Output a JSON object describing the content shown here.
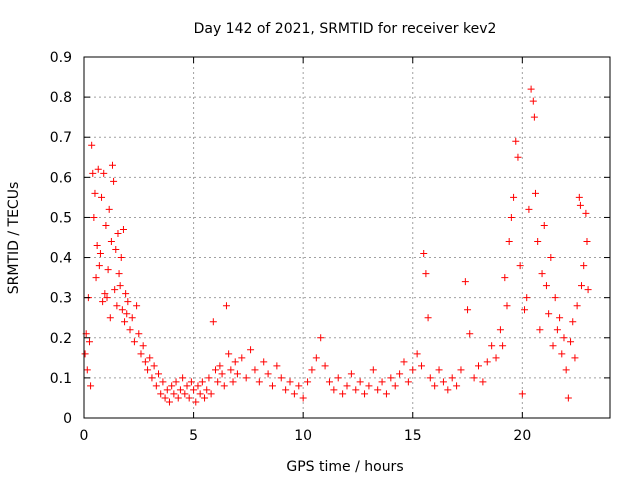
{
  "chart_data": {
    "type": "scatter",
    "title": "Day 142 of 2021, SRMTID for receiver kev2",
    "xlabel": "GPS time / hours",
    "ylabel": "SRMTID / TECUs",
    "xlim": [
      0,
      24
    ],
    "ylim": [
      0,
      0.9
    ],
    "x_ticks": [
      0,
      5,
      10,
      15,
      20
    ],
    "y_ticks": [
      0,
      0.1,
      0.2,
      0.3,
      0.4,
      0.5,
      0.6,
      0.7,
      0.8,
      0.9
    ],
    "x_tick_labels": [
      "0",
      "5",
      "10",
      "15",
      "20"
    ],
    "y_tick_labels": [
      "0",
      "0.1",
      "0.2",
      "0.3",
      "0.4",
      "0.5",
      "0.6",
      "0.7",
      "0.8",
      "0.9"
    ],
    "grid": true,
    "marker": "+",
    "series": [
      {
        "name": "SRMTID",
        "color": "#ff0000",
        "points": [
          [
            0.05,
            0.16
          ],
          [
            0.1,
            0.21
          ],
          [
            0.15,
            0.12
          ],
          [
            0.2,
            0.3
          ],
          [
            0.25,
            0.19
          ],
          [
            0.3,
            0.08
          ],
          [
            0.35,
            0.68
          ],
          [
            0.4,
            0.61
          ],
          [
            0.45,
            0.5
          ],
          [
            0.5,
            0.56
          ],
          [
            0.55,
            0.35
          ],
          [
            0.6,
            0.43
          ],
          [
            0.65,
            0.62
          ],
          [
            0.7,
            0.38
          ],
          [
            0.75,
            0.41
          ],
          [
            0.8,
            0.55
          ],
          [
            0.85,
            0.29
          ],
          [
            0.9,
            0.61
          ],
          [
            0.95,
            0.31
          ],
          [
            1.0,
            0.48
          ],
          [
            1.05,
            0.3
          ],
          [
            1.1,
            0.37
          ],
          [
            1.15,
            0.52
          ],
          [
            1.2,
            0.25
          ],
          [
            1.25,
            0.44
          ],
          [
            1.3,
            0.63
          ],
          [
            1.35,
            0.59
          ],
          [
            1.4,
            0.32
          ],
          [
            1.45,
            0.42
          ],
          [
            1.5,
            0.28
          ],
          [
            1.55,
            0.46
          ],
          [
            1.6,
            0.36
          ],
          [
            1.65,
            0.33
          ],
          [
            1.7,
            0.4
          ],
          [
            1.75,
            0.27
          ],
          [
            1.8,
            0.47
          ],
          [
            1.85,
            0.24
          ],
          [
            1.9,
            0.31
          ],
          [
            1.95,
            0.26
          ],
          [
            2.0,
            0.29
          ],
          [
            2.1,
            0.22
          ],
          [
            2.2,
            0.25
          ],
          [
            2.3,
            0.19
          ],
          [
            2.4,
            0.28
          ],
          [
            2.5,
            0.21
          ],
          [
            2.6,
            0.16
          ],
          [
            2.7,
            0.18
          ],
          [
            2.8,
            0.14
          ],
          [
            2.9,
            0.12
          ],
          [
            3.0,
            0.15
          ],
          [
            3.1,
            0.1
          ],
          [
            3.2,
            0.13
          ],
          [
            3.3,
            0.08
          ],
          [
            3.4,
            0.11
          ],
          [
            3.5,
            0.06
          ],
          [
            3.6,
            0.09
          ],
          [
            3.7,
            0.05
          ],
          [
            3.8,
            0.07
          ],
          [
            3.9,
            0.04
          ],
          [
            4.0,
            0.08
          ],
          [
            4.1,
            0.06
          ],
          [
            4.2,
            0.09
          ],
          [
            4.3,
            0.05
          ],
          [
            4.4,
            0.07
          ],
          [
            4.5,
            0.1
          ],
          [
            4.6,
            0.06
          ],
          [
            4.7,
            0.08
          ],
          [
            4.8,
            0.05
          ],
          [
            4.9,
            0.09
          ],
          [
            5.0,
            0.07
          ],
          [
            5.1,
            0.04
          ],
          [
            5.2,
            0.08
          ],
          [
            5.3,
            0.06
          ],
          [
            5.4,
            0.09
          ],
          [
            5.5,
            0.05
          ],
          [
            5.6,
            0.07
          ],
          [
            5.7,
            0.1
          ],
          [
            5.8,
            0.06
          ],
          [
            5.9,
            0.24
          ],
          [
            6.0,
            0.12
          ],
          [
            6.1,
            0.09
          ],
          [
            6.2,
            0.13
          ],
          [
            6.3,
            0.11
          ],
          [
            6.4,
            0.08
          ],
          [
            6.5,
            0.28
          ],
          [
            6.6,
            0.16
          ],
          [
            6.7,
            0.12
          ],
          [
            6.8,
            0.09
          ],
          [
            6.9,
            0.14
          ],
          [
            7.0,
            0.11
          ],
          [
            7.2,
            0.15
          ],
          [
            7.4,
            0.1
          ],
          [
            7.6,
            0.17
          ],
          [
            7.8,
            0.12
          ],
          [
            8.0,
            0.09
          ],
          [
            8.2,
            0.14
          ],
          [
            8.4,
            0.11
          ],
          [
            8.6,
            0.08
          ],
          [
            8.8,
            0.13
          ],
          [
            9.0,
            0.1
          ],
          [
            9.2,
            0.07
          ],
          [
            9.4,
            0.09
          ],
          [
            9.6,
            0.06
          ],
          [
            9.8,
            0.08
          ],
          [
            10.0,
            0.05
          ],
          [
            10.2,
            0.09
          ],
          [
            10.4,
            0.12
          ],
          [
            10.6,
            0.15
          ],
          [
            10.8,
            0.2
          ],
          [
            11.0,
            0.13
          ],
          [
            11.2,
            0.09
          ],
          [
            11.4,
            0.07
          ],
          [
            11.6,
            0.1
          ],
          [
            11.8,
            0.06
          ],
          [
            12.0,
            0.08
          ],
          [
            12.2,
            0.11
          ],
          [
            12.4,
            0.07
          ],
          [
            12.6,
            0.09
          ],
          [
            12.8,
            0.06
          ],
          [
            13.0,
            0.08
          ],
          [
            13.2,
            0.12
          ],
          [
            13.4,
            0.07
          ],
          [
            13.6,
            0.09
          ],
          [
            13.8,
            0.06
          ],
          [
            14.0,
            0.1
          ],
          [
            14.2,
            0.08
          ],
          [
            14.4,
            0.11
          ],
          [
            14.6,
            0.14
          ],
          [
            14.8,
            0.09
          ],
          [
            15.0,
            0.12
          ],
          [
            15.2,
            0.16
          ],
          [
            15.4,
            0.13
          ],
          [
            15.5,
            0.41
          ],
          [
            15.6,
            0.36
          ],
          [
            15.7,
            0.25
          ],
          [
            15.8,
            0.1
          ],
          [
            16.0,
            0.08
          ],
          [
            16.2,
            0.12
          ],
          [
            16.4,
            0.09
          ],
          [
            16.6,
            0.07
          ],
          [
            16.8,
            0.1
          ],
          [
            17.0,
            0.08
          ],
          [
            17.2,
            0.12
          ],
          [
            17.4,
            0.34
          ],
          [
            17.5,
            0.27
          ],
          [
            17.6,
            0.21
          ],
          [
            17.8,
            0.1
          ],
          [
            18.0,
            0.13
          ],
          [
            18.2,
            0.09
          ],
          [
            18.4,
            0.14
          ],
          [
            18.6,
            0.18
          ],
          [
            18.8,
            0.15
          ],
          [
            19.0,
            0.22
          ],
          [
            19.1,
            0.18
          ],
          [
            19.2,
            0.35
          ],
          [
            19.3,
            0.28
          ],
          [
            19.4,
            0.44
          ],
          [
            19.5,
            0.5
          ],
          [
            19.6,
            0.55
          ],
          [
            19.7,
            0.69
          ],
          [
            19.8,
            0.65
          ],
          [
            19.9,
            0.38
          ],
          [
            20.0,
            0.06
          ],
          [
            20.1,
            0.27
          ],
          [
            20.2,
            0.3
          ],
          [
            20.3,
            0.52
          ],
          [
            20.4,
            0.82
          ],
          [
            20.5,
            0.79
          ],
          [
            20.55,
            0.75
          ],
          [
            20.6,
            0.56
          ],
          [
            20.7,
            0.44
          ],
          [
            20.8,
            0.22
          ],
          [
            20.9,
            0.36
          ],
          [
            21.0,
            0.48
          ],
          [
            21.1,
            0.33
          ],
          [
            21.2,
            0.26
          ],
          [
            21.3,
            0.4
          ],
          [
            21.4,
            0.18
          ],
          [
            21.5,
            0.3
          ],
          [
            21.6,
            0.22
          ],
          [
            21.7,
            0.25
          ],
          [
            21.8,
            0.16
          ],
          [
            21.9,
            0.2
          ],
          [
            22.0,
            0.12
          ],
          [
            22.1,
            0.05
          ],
          [
            22.2,
            0.19
          ],
          [
            22.3,
            0.24
          ],
          [
            22.4,
            0.15
          ],
          [
            22.5,
            0.28
          ],
          [
            22.6,
            0.55
          ],
          [
            22.65,
            0.53
          ],
          [
            22.7,
            0.33
          ],
          [
            22.8,
            0.38
          ],
          [
            22.9,
            0.51
          ],
          [
            22.95,
            0.44
          ],
          [
            23.0,
            0.32
          ]
        ]
      }
    ]
  }
}
